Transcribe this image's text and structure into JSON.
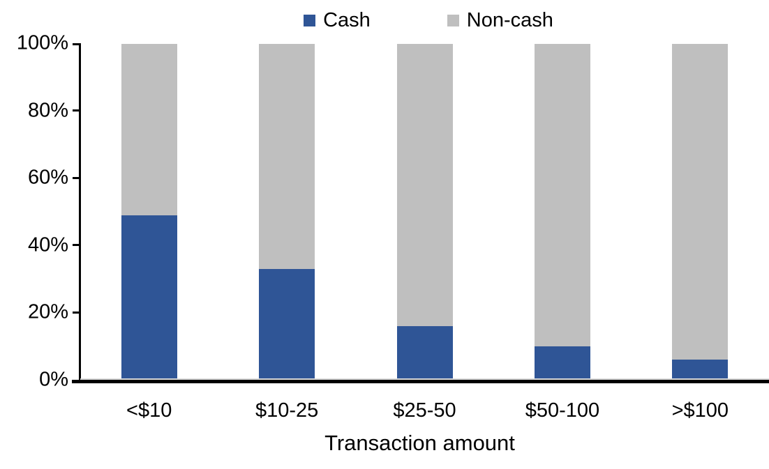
{
  "chart_data": {
    "type": "bar",
    "stacked": true,
    "units": "%",
    "categories": [
      "<$10",
      "$10-25",
      "$25-50",
      "$50-100",
      ">$100"
    ],
    "series": [
      {
        "name": "Cash",
        "color": "#2F5596",
        "values": [
          49,
          33,
          16,
          10,
          6
        ]
      },
      {
        "name": "Non-cash",
        "color": "#BFBFBF",
        "values": [
          51,
          67,
          84,
          90,
          94
        ]
      }
    ],
    "title": "",
    "xlabel": "Transaction amount",
    "ylabel": "",
    "ylim": [
      0,
      100
    ],
    "yticks": [
      "0%",
      "20%",
      "40%",
      "60%",
      "80%",
      "100%"
    ],
    "legend_position": "top-center",
    "grid": false,
    "colors": {
      "axis": "#000000",
      "baseline_secondary": "#D9D9D9",
      "text": "#000000",
      "background": "#FFFFFF"
    }
  }
}
